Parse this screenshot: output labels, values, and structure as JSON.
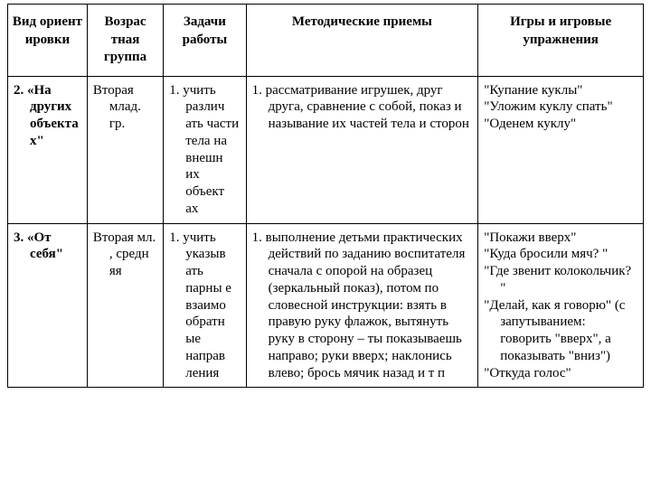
{
  "table": {
    "headers": {
      "c1": "Вид ориент ировки",
      "c2": "Возрас тная группа",
      "c3": "Задачи работы",
      "c4": "Методические приемы",
      "c5": "Игры и игровые упражнения"
    },
    "rows": [
      {
        "c1": "2. «На других объекта х\"",
        "c2": "Вторая млад. гр.",
        "c3": "1. учить различ ать части тела на внешн их объект ах",
        "c4": "1. рассматривание игрушек, друг друга, сравнение с собой, показ и называние их частей тела и сторон",
        "c5a": "\"Купание куклы\"",
        "c5b": "\"Уложим куклу спать\"",
        "c5c": "\"Оденем куклу\""
      },
      {
        "c1": "3. «От себя\"",
        "c2": "Вторая мл. , средн яя",
        "c3": "1. учить указыв ать парны е взаимо обратн ые направ ления",
        "c4": "1. выполнение детьми практических действий по заданию воспитателя сначала с опорой на образец (зеркальный показ), потом по словесной инструкции: взять в правую руку флажок, вытянуть руку в сторону – ты показываешь направо; руки вверх; наклонись влево; брось мячик назад и т п",
        "c5a": "\"Покажи вверх\"",
        "c5b": "\"Куда бросили мяч? \"",
        "c5c": "\"Где звенит колокольчик? \"",
        "c5d": "\"Делай, как я говорю\" (с запутыванием: говорить \"вверх\", а показывать \"вниз\")",
        "c5e": "\"Откуда голос\""
      }
    ]
  }
}
